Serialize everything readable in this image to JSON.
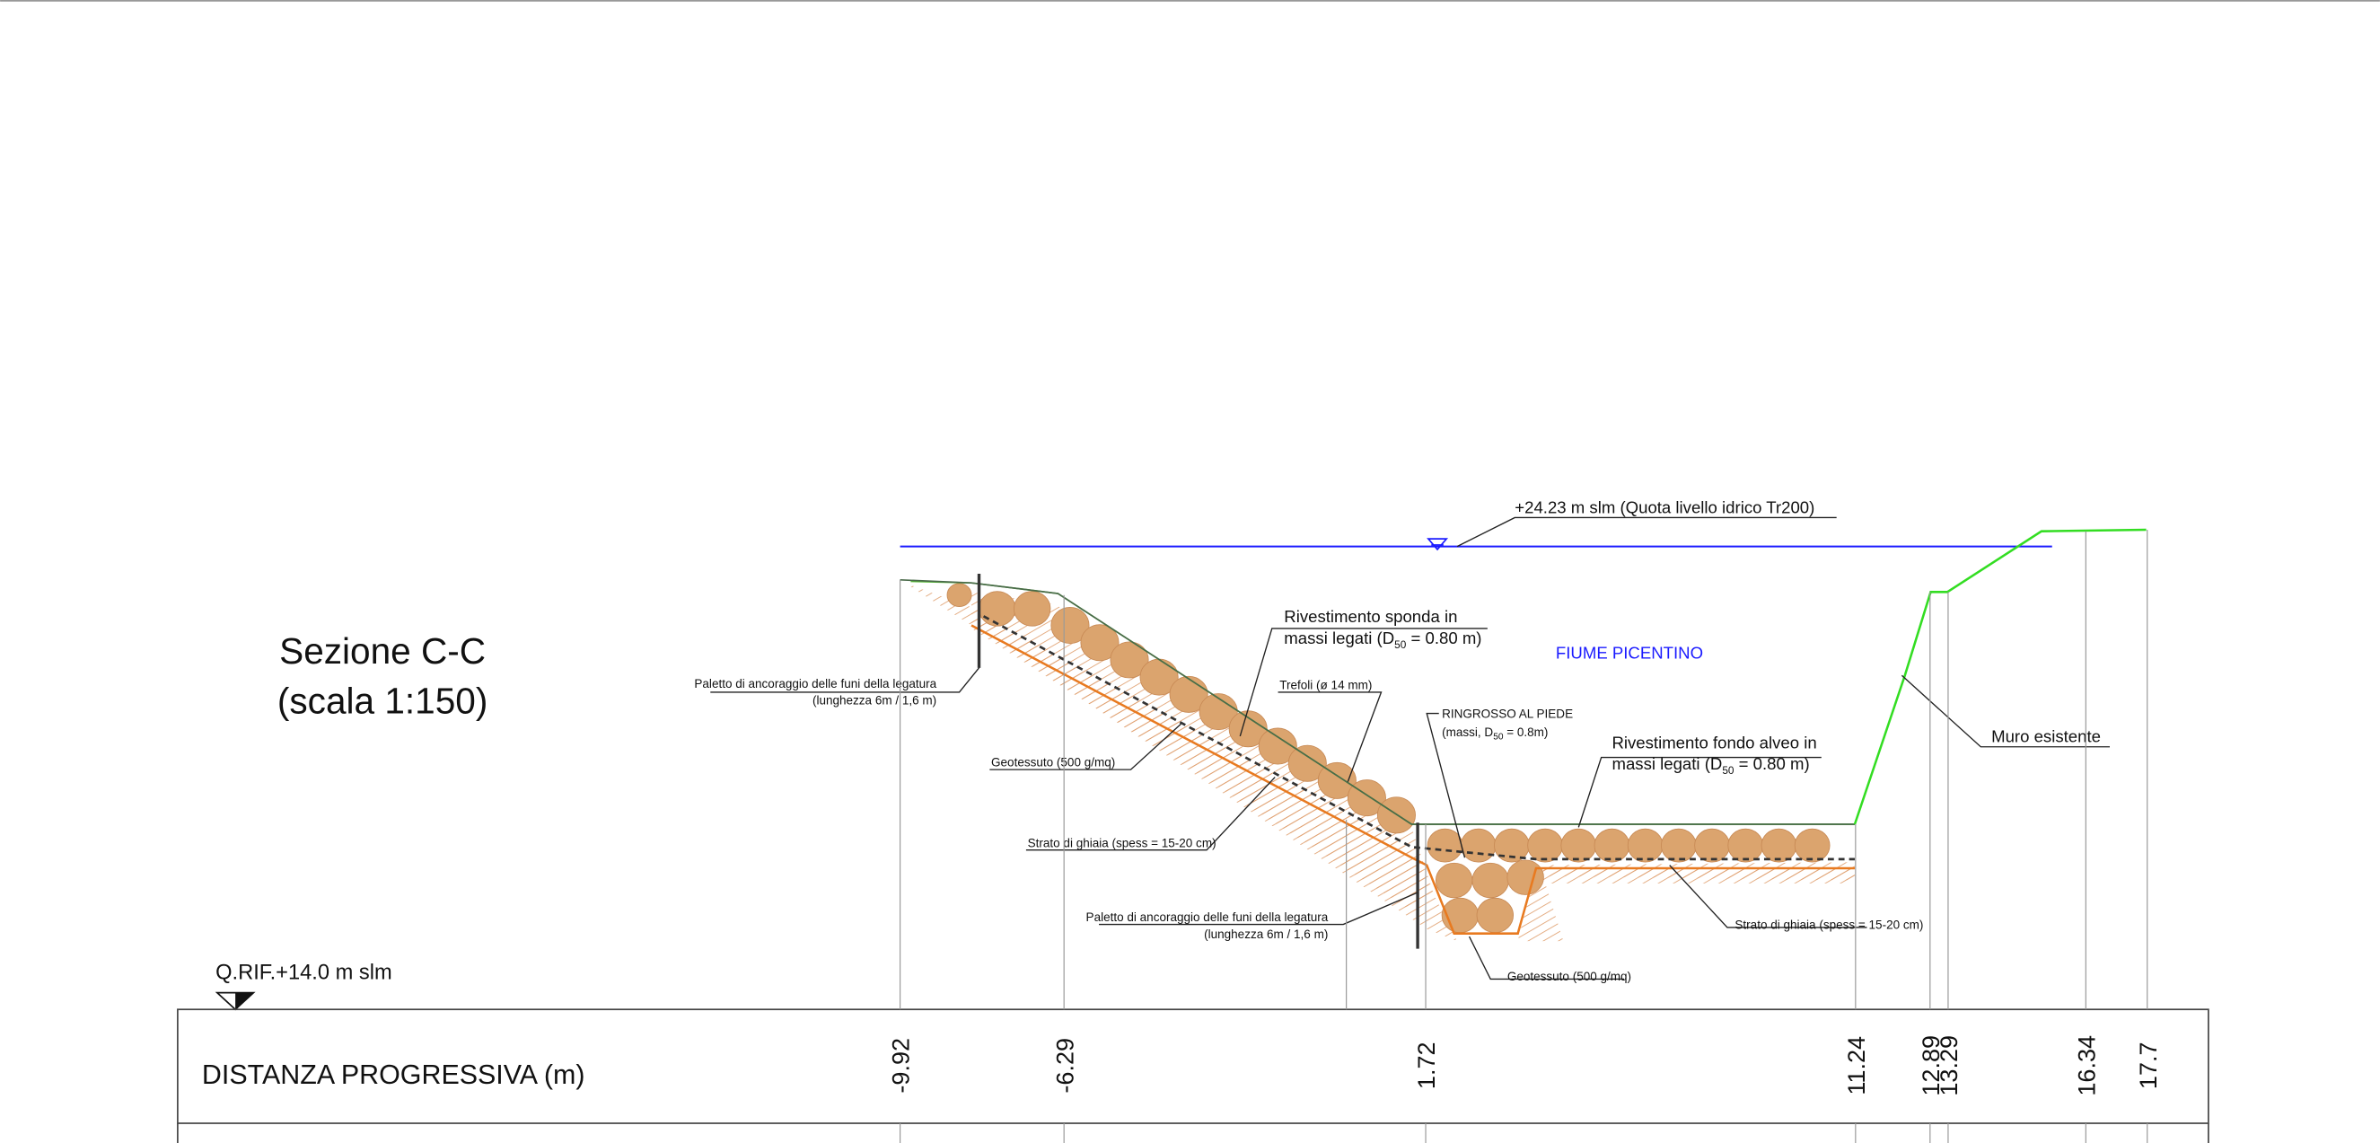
{
  "section": {
    "title": "Sezione C-C",
    "scale": "(scala 1:150)"
  },
  "water_level": "+24.23 m slm (Quota livello idrico Tr200)",
  "river": "FIUME PICENTINO",
  "reference": "Q.RIF.+14.0 m slm",
  "annotations": {
    "bank_lining": [
      "Rivestimento sponda in",
      [
        "massi legati (D",
        "50",
        " = 0.80 m)"
      ]
    ],
    "bed_lining": [
      "Rivestimento fondo alveo in",
      [
        "massi legati (D",
        "50",
        " = 0.80 m)"
      ]
    ],
    "toe": [
      "RINGROSSO AL PIEDE",
      [
        "(massi, D",
        "50",
        " = 0.8m)"
      ]
    ],
    "strands": "Trefoli (ø 14 mm)",
    "anchor_top": [
      "Paletto di ancoraggio delle funi della legatura",
      "(lunghezza 6m / 1,6 m)"
    ],
    "anchor_bottom": [
      "Paletto di ancoraggio delle funi della legatura",
      "(lunghezza 6m / 1,6 m)"
    ],
    "geotextile_top": "Geotessuto (500 g/mq)",
    "geotextile_bottom": "Geotessuto (500 g/mq)",
    "gravel_bank": "Strato di ghiaia (spess = 15-20 cm)",
    "gravel_bed": "Strato di ghiaia (spess = 15-20 cm)",
    "wall": "Muro esistente"
  },
  "table": {
    "label": "DISTANZA PROGRESSIVA (m)",
    "distances": [
      -9.92,
      -6.29,
      1.72,
      11.24,
      12.89,
      13.29,
      16.34,
      17.7
    ]
  }
}
